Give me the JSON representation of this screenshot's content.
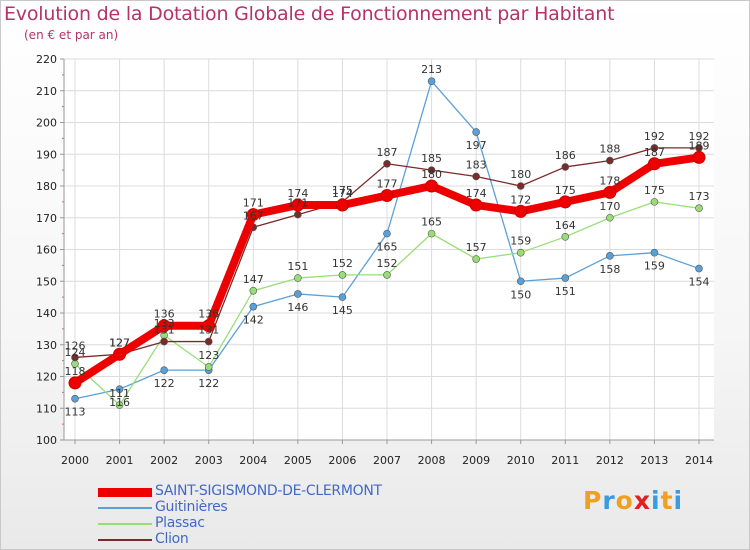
{
  "title": "Evolution de la Dotation Globale de Fonctionnement par Habitant",
  "subtitle": "(en € et par an)",
  "logo": {
    "text": "Proxiti",
    "letter_colors": [
      "#f0a020",
      "#3a9be0",
      "#f0a020",
      "#e02020",
      "#3a9be0",
      "#f0a020",
      "#3a9be0"
    ]
  },
  "chart_data": {
    "type": "line",
    "x": [
      2000,
      2001,
      2002,
      2003,
      2004,
      2005,
      2006,
      2007,
      2008,
      2009,
      2010,
      2011,
      2012,
      2013,
      2014
    ],
    "ylim": [
      100,
      220
    ],
    "yticks": [
      100,
      110,
      120,
      130,
      140,
      150,
      160,
      170,
      180,
      190,
      200,
      210,
      220
    ],
    "grid": true,
    "legend_position": "bottom-left",
    "series": [
      {
        "name": "SAINT-SIGISMOND-DE-CLERMONT",
        "color": "#ee0000",
        "values": [
          118,
          127,
          136,
          136,
          171,
          174,
          174,
          177,
          180,
          174,
          172,
          175,
          178,
          187,
          189
        ]
      },
      {
        "name": "Guitinières",
        "color": "#5aa0d8",
        "values": [
          113,
          116,
          122,
          122,
          142,
          146,
          145,
          165,
          213,
          197,
          150,
          151,
          158,
          159,
          154
        ]
      },
      {
        "name": "Plassac",
        "color": "#99dd77",
        "values": [
          124,
          111,
          133,
          123,
          147,
          151,
          152,
          152,
          165,
          157,
          159,
          164,
          170,
          175,
          173
        ]
      },
      {
        "name": "Clion",
        "color": "#7a2a2a",
        "values": [
          126,
          127,
          131,
          131,
          167,
          171,
          175,
          187,
          185,
          183,
          180,
          186,
          188,
          192,
          192
        ]
      }
    ]
  }
}
